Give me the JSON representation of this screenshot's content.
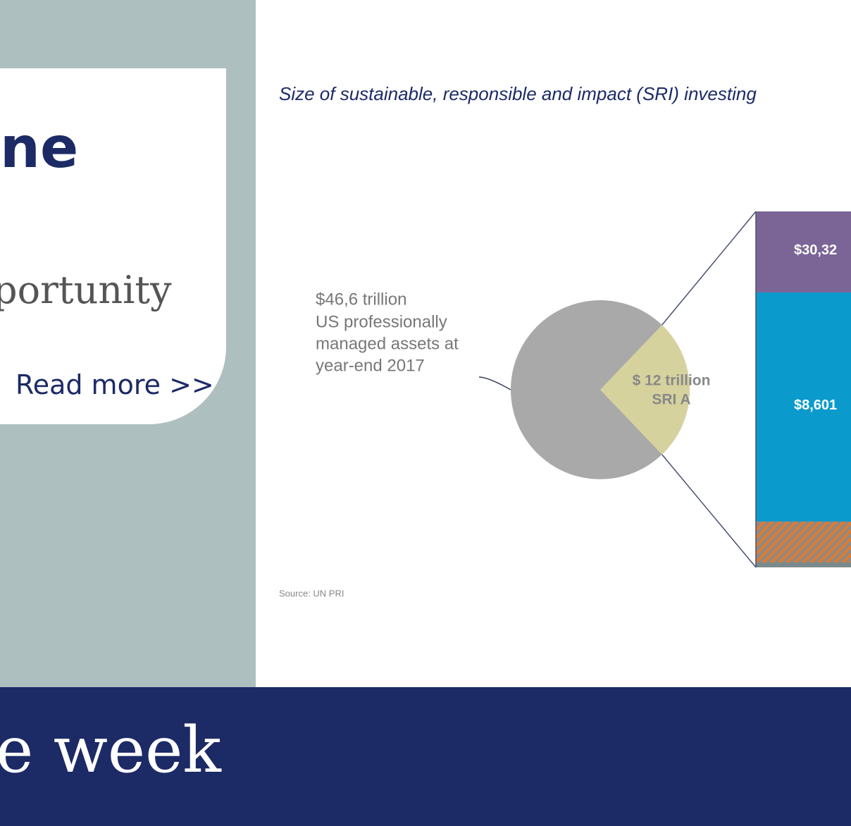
{
  "card": {
    "heading": "ne",
    "subheading": "portunity",
    "link": "Read more >>"
  },
  "banner": {
    "text": "e week"
  },
  "chart_data": {
    "type": "pie-of-bar",
    "title": "Size of sustainable, responsible and impact (SRI) investing",
    "values": [
      46.6,
      12
    ],
    "value_labels": [
      "$46,6 trillion",
      "$ 12 trillion"
    ],
    "descriptions": [
      [
        "US professionally",
        "managed assets at",
        "year-end 2017"
      ],
      [
        "SRI A"
      ]
    ],
    "colors": [
      "#a9a9a9",
      "#d6d29e"
    ],
    "bar_labels": [
      "$30,32",
      "$8,601"
    ],
    "bar_colors": [
      "#7b6597",
      "#0a9acc"
    ],
    "source": "Source: UN PRI"
  }
}
